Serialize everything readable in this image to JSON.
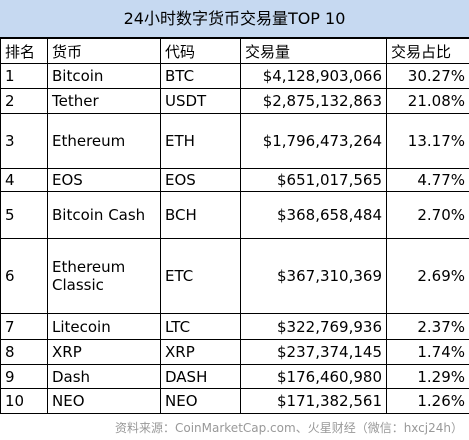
{
  "header": {
    "title": "24小时数字货币交易量TOP 10"
  },
  "table": {
    "columns": [
      "排名",
      "货币",
      "代码",
      "交易量",
      "交易占比"
    ],
    "rows": [
      [
        "1",
        "Bitcoin",
        "BTC",
        "$4,128,903,066",
        "30.27%"
      ],
      [
        "2",
        "Tether",
        "USDT",
        "$2,875,132,863",
        "21.08%"
      ],
      [
        "3",
        "Ethereum",
        "ETH",
        "$1,796,473,264",
        "13.17%"
      ],
      [
        "4",
        "EOS",
        "EOS",
        "$651,017,565",
        "4.77%"
      ],
      [
        "5",
        "Bitcoin Cash",
        "BCH",
        "$368,658,484",
        "2.70%"
      ],
      [
        "6",
        "Ethereum Classic",
        "ETC",
        "$367,310,369",
        "2.69%"
      ],
      [
        "7",
        "Litecoin",
        "LTC",
        "$322,769,936",
        "2.37%"
      ],
      [
        "8",
        "XRP",
        "XRP",
        "$237,374,145",
        "1.74%"
      ],
      [
        "9",
        "Dash",
        "DASH",
        "$176,460,980",
        "1.29%"
      ],
      [
        "10",
        "NEO",
        "NEO",
        "$171,382,561",
        "1.26%"
      ]
    ]
  },
  "footer": {
    "source": "资料来源：CoinMarketCap.com、火星财经（微信：hxcj24h）"
  }
}
